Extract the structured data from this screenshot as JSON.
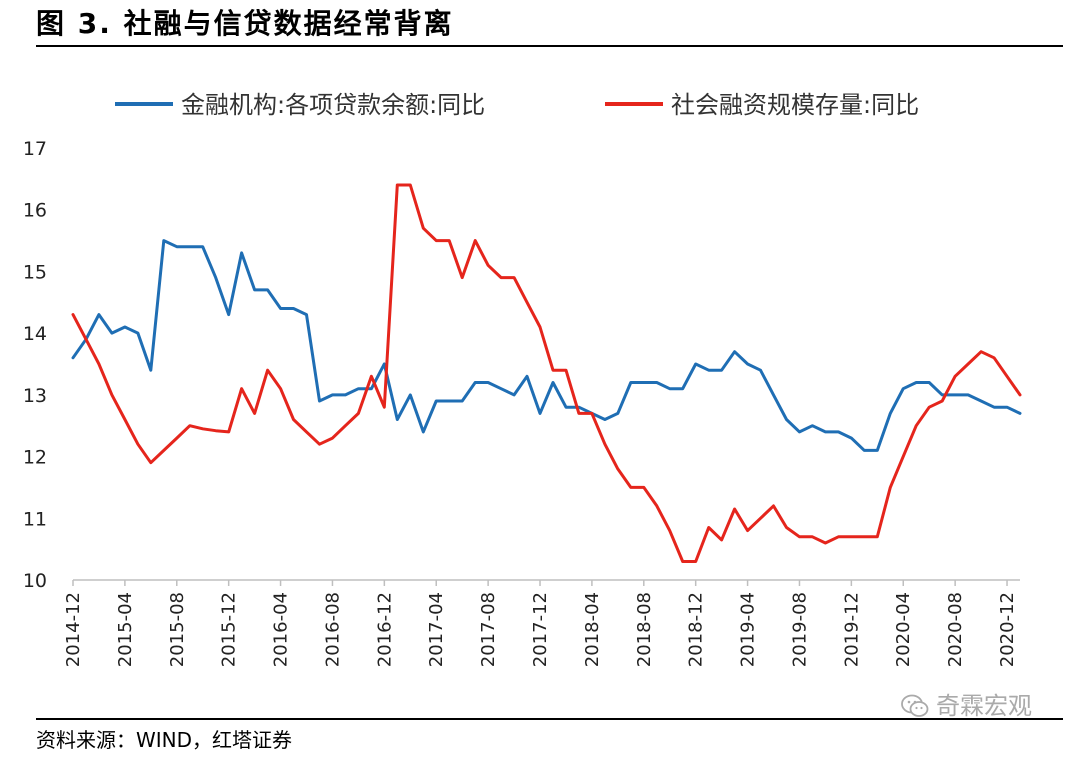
{
  "figure": {
    "title": "图 3. 社融与信贷数据经常背离",
    "source": "资料来源：WIND，红塔证券",
    "watermark": "奇霖宏观",
    "watermark_icon": "wechat-icon"
  },
  "chart_data": {
    "type": "line",
    "title": "",
    "xlabel": "",
    "ylabel": "",
    "ylim": [
      10,
      17
    ],
    "yticks": [
      10,
      11,
      12,
      13,
      14,
      15,
      16,
      17
    ],
    "grid": false,
    "legend_position": "top",
    "x": [
      "2014-12",
      "2015-01",
      "2015-02",
      "2015-03",
      "2015-04",
      "2015-05",
      "2015-06",
      "2015-07",
      "2015-08",
      "2015-09",
      "2015-10",
      "2015-11",
      "2015-12",
      "2016-01",
      "2016-02",
      "2016-03",
      "2016-04",
      "2016-05",
      "2016-06",
      "2016-07",
      "2016-08",
      "2016-09",
      "2016-10",
      "2016-11",
      "2016-12",
      "2017-01",
      "2017-02",
      "2017-03",
      "2017-04",
      "2017-05",
      "2017-06",
      "2017-07",
      "2017-08",
      "2017-09",
      "2017-10",
      "2017-11",
      "2017-12",
      "2018-01",
      "2018-02",
      "2018-03",
      "2018-04",
      "2018-05",
      "2018-06",
      "2018-07",
      "2018-08",
      "2018-09",
      "2018-10",
      "2018-11",
      "2018-12",
      "2019-01",
      "2019-02",
      "2019-03",
      "2019-04",
      "2019-05",
      "2019-06",
      "2019-07",
      "2019-08",
      "2019-09",
      "2019-10",
      "2019-11",
      "2019-12",
      "2020-01",
      "2020-02",
      "2020-03",
      "2020-04",
      "2020-05",
      "2020-06",
      "2020-07",
      "2020-08",
      "2020-09",
      "2020-10",
      "2020-11",
      "2020-12",
      "2021-01"
    ],
    "xtick_labels": [
      "2014-12",
      "2015-04",
      "2015-08",
      "2015-12",
      "2016-04",
      "2016-08",
      "2016-12",
      "2017-04",
      "2017-08",
      "2017-12",
      "2018-04",
      "2018-08",
      "2018-12",
      "2019-04",
      "2019-08",
      "2019-12",
      "2020-04",
      "2020-08",
      "2020-12"
    ],
    "series": [
      {
        "name": "金融机构:各项贷款余额:同比",
        "color": "#1f6eb4",
        "values": [
          13.6,
          13.9,
          14.3,
          14.0,
          14.1,
          14.0,
          13.4,
          15.5,
          15.4,
          15.4,
          15.4,
          14.9,
          14.3,
          15.3,
          14.7,
          14.7,
          14.4,
          14.4,
          14.3,
          12.9,
          13.0,
          13.0,
          13.1,
          13.1,
          13.5,
          12.6,
          13.0,
          12.4,
          12.9,
          12.9,
          12.9,
          13.2,
          13.2,
          13.1,
          13.0,
          13.3,
          12.7,
          13.2,
          12.8,
          12.8,
          12.7,
          12.6,
          12.7,
          13.2,
          13.2,
          13.2,
          13.1,
          13.1,
          13.5,
          13.4,
          13.4,
          13.7,
          13.5,
          13.4,
          13.0,
          12.6,
          12.4,
          12.5,
          12.4,
          12.4,
          12.3,
          12.1,
          12.1,
          12.7,
          13.1,
          13.2,
          13.2,
          13.0,
          13.0,
          13.0,
          12.9,
          12.8,
          12.8,
          12.7
        ]
      },
      {
        "name": "社会融资规模存量:同比",
        "color": "#e5251c",
        "values": [
          14.3,
          13.9,
          13.5,
          13.0,
          12.6,
          12.2,
          11.9,
          12.1,
          12.3,
          12.5,
          12.45,
          12.42,
          12.4,
          13.1,
          12.7,
          13.4,
          13.1,
          12.6,
          12.4,
          12.2,
          12.3,
          12.5,
          12.7,
          13.3,
          12.8,
          16.4,
          16.4,
          15.7,
          15.5,
          15.5,
          14.9,
          15.5,
          15.1,
          14.9,
          14.9,
          14.5,
          14.1,
          13.4,
          13.4,
          12.7,
          12.7,
          12.2,
          11.8,
          11.5,
          11.5,
          11.2,
          10.8,
          10.3,
          10.3,
          10.85,
          10.65,
          11.15,
          10.8,
          11.0,
          11.2,
          10.85,
          10.7,
          10.7,
          10.6,
          10.7,
          10.7,
          10.7,
          10.7,
          11.5,
          12.0,
          12.5,
          12.8,
          12.9,
          13.3,
          13.5,
          13.7,
          13.6,
          13.3,
          13.0
        ]
      }
    ]
  }
}
